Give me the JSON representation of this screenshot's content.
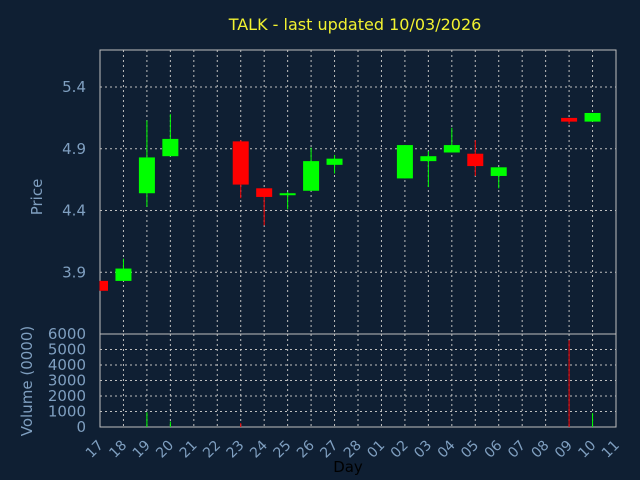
{
  "chart_data": {
    "type": "candlestick",
    "title": "TALK - last updated 10/03/2026",
    "xlabel": "Day",
    "price_panel": {
      "ylabel": "Price",
      "yticks": [
        "3.9",
        "4.4",
        "4.9",
        "5.4"
      ],
      "ylim": [
        3.4,
        5.7
      ]
    },
    "volume_panel": {
      "ylabel": "Volume (0000)",
      "yticks": [
        "0",
        "1000",
        "2000",
        "3000",
        "4000",
        "5000",
        "6000"
      ],
      "ylim": [
        0,
        6000
      ]
    },
    "x_tick_labels": [
      "17",
      "18",
      "19",
      "20",
      "21",
      "22",
      "23",
      "24",
      "25",
      "26",
      "27",
      "28",
      "01",
      "02",
      "03",
      "04",
      "05",
      "06",
      "07",
      "08",
      "09",
      "10",
      "11"
    ],
    "candles": [
      {
        "x": "17",
        "open": 3.83,
        "high": 3.83,
        "low": 3.75,
        "close": 3.75
      },
      {
        "x": "18",
        "open": 3.83,
        "high": 4.01,
        "low": 3.83,
        "close": 3.93
      },
      {
        "x": "19",
        "open": 4.54,
        "high": 5.13,
        "low": 4.43,
        "close": 4.83
      },
      {
        "x": "20",
        "open": 4.84,
        "high": 5.18,
        "low": 4.84,
        "close": 4.98
      },
      {
        "x": "23",
        "open": 4.96,
        "high": 4.97,
        "low": 4.5,
        "close": 4.61
      },
      {
        "x": "24",
        "open": 4.58,
        "high": 4.58,
        "low": 4.28,
        "close": 4.51
      },
      {
        "x": "25",
        "open": 4.53,
        "high": 4.55,
        "low": 4.41,
        "close": 4.54
      },
      {
        "x": "26",
        "open": 4.56,
        "high": 4.91,
        "low": 4.56,
        "close": 4.8
      },
      {
        "x": "27",
        "open": 4.77,
        "high": 4.85,
        "low": 4.7,
        "close": 4.82
      },
      {
        "x": "02",
        "open": 4.66,
        "high": 4.93,
        "low": 4.66,
        "close": 4.93
      },
      {
        "x": "03",
        "open": 4.8,
        "high": 4.88,
        "low": 4.59,
        "close": 4.84
      },
      {
        "x": "04",
        "open": 4.87,
        "high": 5.07,
        "low": 4.87,
        "close": 4.93
      },
      {
        "x": "05",
        "open": 4.86,
        "high": 4.97,
        "low": 4.68,
        "close": 4.76
      },
      {
        "x": "06",
        "open": 4.68,
        "high": 4.75,
        "low": 4.58,
        "close": 4.75
      },
      {
        "x": "09",
        "open": 5.15,
        "high": 5.15,
        "low": 5.1,
        "close": 5.12
      },
      {
        "x": "10",
        "open": 5.12,
        "high": 5.19,
        "low": 5.12,
        "close": 5.19
      }
    ],
    "volumes": [
      {
        "x": "17",
        "value": 0,
        "dir": "up"
      },
      {
        "x": "18",
        "value": 0,
        "dir": "up"
      },
      {
        "x": "19",
        "value": 950,
        "dir": "up"
      },
      {
        "x": "20",
        "value": 350,
        "dir": "up"
      },
      {
        "x": "23",
        "value": 250,
        "dir": "down"
      },
      {
        "x": "24",
        "value": 0,
        "dir": "down"
      },
      {
        "x": "25",
        "value": 0,
        "dir": "up"
      },
      {
        "x": "26",
        "value": 0,
        "dir": "up"
      },
      {
        "x": "27",
        "value": 0,
        "dir": "up"
      },
      {
        "x": "02",
        "value": 0,
        "dir": "up"
      },
      {
        "x": "03",
        "value": 0,
        "dir": "up"
      },
      {
        "x": "04",
        "value": 0,
        "dir": "up"
      },
      {
        "x": "05",
        "value": 0,
        "dir": "down"
      },
      {
        "x": "06",
        "value": 0,
        "dir": "up"
      },
      {
        "x": "09",
        "value": 5600,
        "dir": "down"
      },
      {
        "x": "10",
        "value": 900,
        "dir": "up"
      }
    ],
    "grid": true,
    "colors": {
      "background": "#0f1f33",
      "up": "#00ff00",
      "down": "#ff0000",
      "grid": "#bfbfbf",
      "title": "#f2f230",
      "axis_text": "#7f9fc0"
    }
  }
}
